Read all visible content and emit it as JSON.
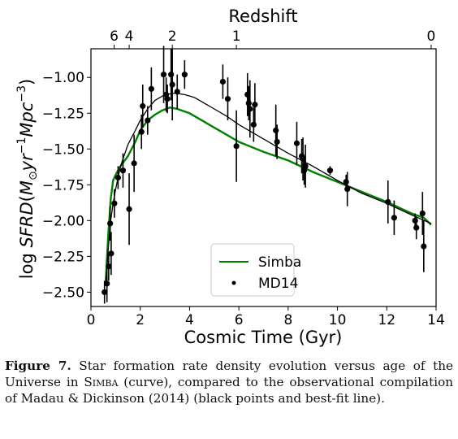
{
  "chart_data": {
    "type": "line",
    "xlabel": "Cosmic Time (Gyr)",
    "ylabel": "log SFRD(M⊙yr⁻¹Mpc⁻³)",
    "ylabel_parts": {
      "a": "log ",
      "b": "SFRD",
      "c": "(",
      "d": "M",
      "e": "⊙",
      "f": "yr",
      "g": "−1",
      "h": "Mpc",
      "i": "−3",
      "j": ")"
    },
    "top_xlabel": "Redshift",
    "xlim": [
      0,
      14
    ],
    "ylim": [
      -2.6,
      -0.8
    ],
    "x_ticks": [
      0,
      2,
      4,
      6,
      8,
      10,
      12,
      14
    ],
    "x_tick_labels": [
      "0",
      "2",
      "4",
      "6",
      "8",
      "10",
      "12",
      "14"
    ],
    "y_ticks": [
      -2.5,
      -2.25,
      -2.0,
      -1.75,
      -1.5,
      -1.25,
      -1.0
    ],
    "y_tick_labels": [
      "−2.50",
      "−2.25",
      "−2.00",
      "−1.75",
      "−1.50",
      "−1.25",
      "−1.00"
    ],
    "top_ticks": [
      {
        "label": "6",
        "t": 0.94
      },
      {
        "label": "4",
        "t": 1.55
      },
      {
        "label": "2",
        "t": 3.3
      },
      {
        "label": "1",
        "t": 5.9
      },
      {
        "label": "0",
        "t": 13.8
      }
    ],
    "series": [
      {
        "name": "Simba",
        "color": "#008000",
        "style": "line",
        "x": [
          0.6,
          0.7,
          0.8,
          0.9,
          1.0,
          1.2,
          1.5,
          1.8,
          2.0,
          2.3,
          2.6,
          2.9,
          3.2,
          3.5,
          4.0,
          4.5,
          5.0,
          5.5,
          6.0,
          7.0,
          8.0,
          9.0,
          10.0,
          11.0,
          12.0,
          13.0,
          13.5,
          13.8
        ],
        "y": [
          -2.42,
          -2.1,
          -1.85,
          -1.72,
          -1.68,
          -1.62,
          -1.55,
          -1.45,
          -1.37,
          -1.3,
          -1.26,
          -1.23,
          -1.21,
          -1.22,
          -1.25,
          -1.3,
          -1.35,
          -1.4,
          -1.45,
          -1.52,
          -1.58,
          -1.66,
          -1.73,
          -1.8,
          -1.87,
          -1.95,
          -1.98,
          -2.03
        ]
      },
      {
        "name": "",
        "color": "#000000",
        "style": "line",
        "x": [
          0.6,
          0.7,
          0.8,
          0.9,
          1.0,
          1.2,
          1.5,
          1.8,
          2.0,
          2.3,
          2.6,
          3.0,
          3.4,
          3.8,
          4.2,
          4.6,
          5.0,
          5.5,
          6.0,
          7.0,
          8.0,
          9.0,
          10.0,
          11.0,
          12.0,
          13.0,
          13.8
        ],
        "y": [
          -2.45,
          -2.2,
          -2.0,
          -1.88,
          -1.78,
          -1.62,
          -1.47,
          -1.37,
          -1.3,
          -1.22,
          -1.16,
          -1.12,
          -1.11,
          -1.12,
          -1.14,
          -1.18,
          -1.22,
          -1.27,
          -1.33,
          -1.43,
          -1.53,
          -1.62,
          -1.72,
          -1.81,
          -1.88,
          -1.96,
          -2.02
        ]
      },
      {
        "name": "MD14",
        "color": "#000000",
        "style": "points",
        "points": [
          {
            "x": 0.55,
            "y": -2.5,
            "err": 0.08
          },
          {
            "x": 0.65,
            "y": -2.44,
            "err": 0.13
          },
          {
            "x": 0.72,
            "y": -2.32,
            "err": 0.1
          },
          {
            "x": 0.78,
            "y": -2.02,
            "err": 0.12
          },
          {
            "x": 0.82,
            "y": -2.23,
            "err": 0.15
          },
          {
            "x": 0.95,
            "y": -1.88,
            "err": 0.1
          },
          {
            "x": 1.1,
            "y": -1.7,
            "err": 0.08
          },
          {
            "x": 1.3,
            "y": -1.65,
            "err": 0.12
          },
          {
            "x": 1.55,
            "y": -1.92,
            "err": 0.25
          },
          {
            "x": 1.75,
            "y": -1.6,
            "err": 0.2
          },
          {
            "x": 2.05,
            "y": -1.38,
            "err": 0.12
          },
          {
            "x": 2.1,
            "y": -1.2,
            "err": 0.15
          },
          {
            "x": 2.3,
            "y": -1.3,
            "err": 0.1
          },
          {
            "x": 2.45,
            "y": -1.08,
            "err": 0.15
          },
          {
            "x": 2.95,
            "y": -0.98,
            "err": 0.2
          },
          {
            "x": 3.05,
            "y": -1.12,
            "err": 0.12
          },
          {
            "x": 3.1,
            "y": -1.15,
            "err": 0.1
          },
          {
            "x": 3.25,
            "y": -0.98,
            "err": 0.18
          },
          {
            "x": 3.3,
            "y": -1.05,
            "err": 0.25
          },
          {
            "x": 3.5,
            "y": -1.1,
            "err": 0.12
          },
          {
            "x": 3.8,
            "y": -0.98,
            "err": 0.1
          },
          {
            "x": 5.35,
            "y": -1.03,
            "err": 0.12
          },
          {
            "x": 5.55,
            "y": -1.15,
            "err": 0.15
          },
          {
            "x": 5.9,
            "y": -1.48,
            "err": 0.25
          },
          {
            "x": 6.35,
            "y": -1.12,
            "err": 0.15
          },
          {
            "x": 6.4,
            "y": -1.18,
            "err": 0.12
          },
          {
            "x": 6.45,
            "y": -1.22,
            "err": 0.2
          },
          {
            "x": 6.6,
            "y": -1.33,
            "err": 0.12
          },
          {
            "x": 6.65,
            "y": -1.19,
            "err": 0.15
          },
          {
            "x": 7.5,
            "y": -1.37,
            "err": 0.18
          },
          {
            "x": 7.55,
            "y": -1.45,
            "err": 0.12
          },
          {
            "x": 8.35,
            "y": -1.46,
            "err": 0.15
          },
          {
            "x": 8.55,
            "y": -1.55,
            "err": 0.12
          },
          {
            "x": 8.6,
            "y": -1.57,
            "err": 0.15
          },
          {
            "x": 8.65,
            "y": -1.65,
            "err": 0.1
          },
          {
            "x": 8.7,
            "y": -1.62,
            "err": 0.15
          },
          {
            "x": 9.7,
            "y": -1.65,
            "err": 0.03
          },
          {
            "x": 10.35,
            "y": -1.73,
            "err": 0.05
          },
          {
            "x": 10.4,
            "y": -1.78,
            "err": 0.12
          },
          {
            "x": 12.05,
            "y": -1.87,
            "err": 0.15
          },
          {
            "x": 12.3,
            "y": -1.98,
            "err": 0.12
          },
          {
            "x": 13.15,
            "y": -2.0,
            "err": 0.05
          },
          {
            "x": 13.2,
            "y": -2.05,
            "err": 0.08
          },
          {
            "x": 13.45,
            "y": -1.95,
            "err": 0.15
          },
          {
            "x": 13.5,
            "y": -2.18,
            "err": 0.18
          }
        ]
      }
    ],
    "legend": {
      "placement": "lower-center",
      "entries": [
        {
          "label": "Simba",
          "color": "#008000",
          "marker": "line"
        },
        {
          "label": "MD14",
          "color": "#000000",
          "marker": "point"
        }
      ]
    },
    "grid": false
  },
  "caption": {
    "label": "Figure 7.",
    "text_before": " Star formation rate density evolution versus age of the Universe in ",
    "simba": "Simba",
    "text_after": " (curve), compared to the observational compilation of Madau & Dickinson (2014) (black points and best-fit line)."
  }
}
